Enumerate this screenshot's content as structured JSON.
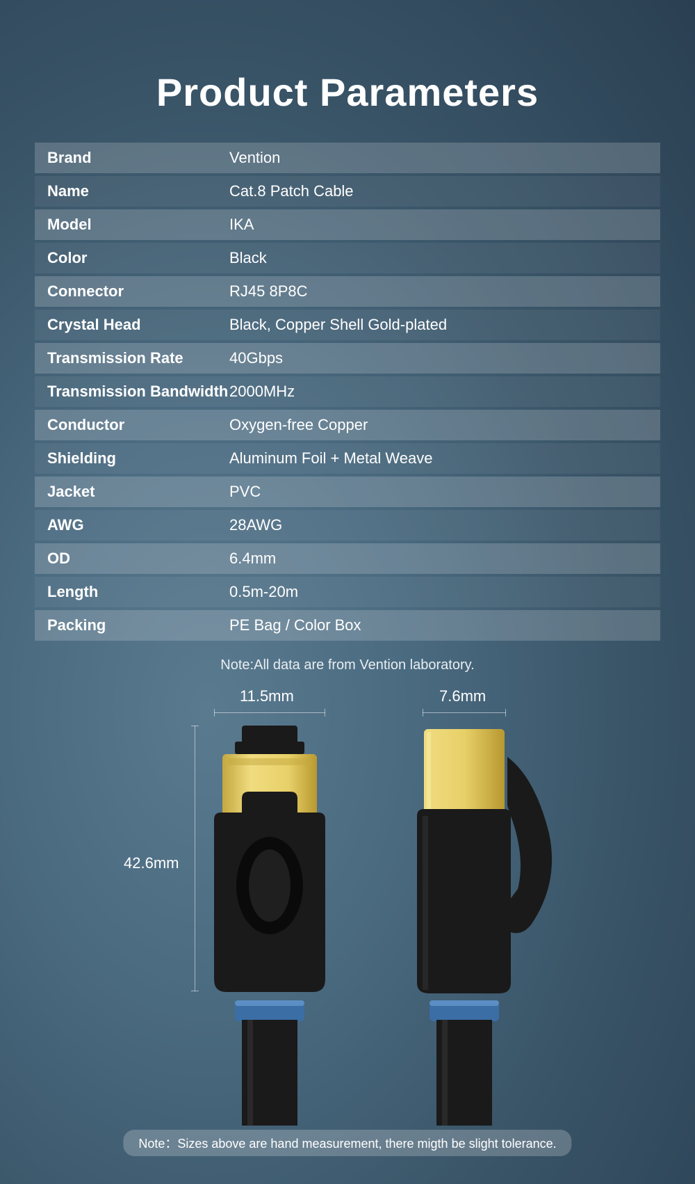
{
  "title": "Product Parameters",
  "specs": [
    {
      "label": "Brand",
      "value": "Vention"
    },
    {
      "label": "Name",
      "value": "Cat.8 Patch Cable"
    },
    {
      "label": "Model",
      "value": "IKA"
    },
    {
      "label": "Color",
      "value": "Black"
    },
    {
      "label": "Connector",
      "value": "RJ45 8P8C"
    },
    {
      "label": "Crystal Head",
      "value": "Black, Copper Shell Gold-plated"
    },
    {
      "label": "Transmission Rate",
      "value": "40Gbps"
    },
    {
      "label": "Transmission Bandwidth",
      "value": "2000MHz"
    },
    {
      "label": "Conductor",
      "value": "Oxygen-free Copper"
    },
    {
      "label": "Shielding",
      "value": "Aluminum Foil + Metal Weave"
    },
    {
      "label": "Jacket",
      "value": "PVC"
    },
    {
      "label": "AWG",
      "value": "28AWG"
    },
    {
      "label": "OD",
      "value": "6.4mm"
    },
    {
      "label": "Length",
      "value": "0.5m-20m"
    },
    {
      "label": "Packing",
      "value": "PE Bag / Color Box"
    }
  ],
  "note_lab": "Note:All data are from Vention laboratory.",
  "dimensions": {
    "width_front": "11.5mm",
    "width_side": "7.6mm",
    "height": "42.6mm"
  },
  "note_bottom": "Note：Sizes above are hand measurement, there migth be slight tolerance.",
  "colors": {
    "gold": "#e8d068",
    "gold_dark": "#c4a840",
    "black": "#1a1a1a",
    "black_mid": "#2a2a2a",
    "blue_ring": "#3a6ea5",
    "cable": "#1a1a1a"
  }
}
